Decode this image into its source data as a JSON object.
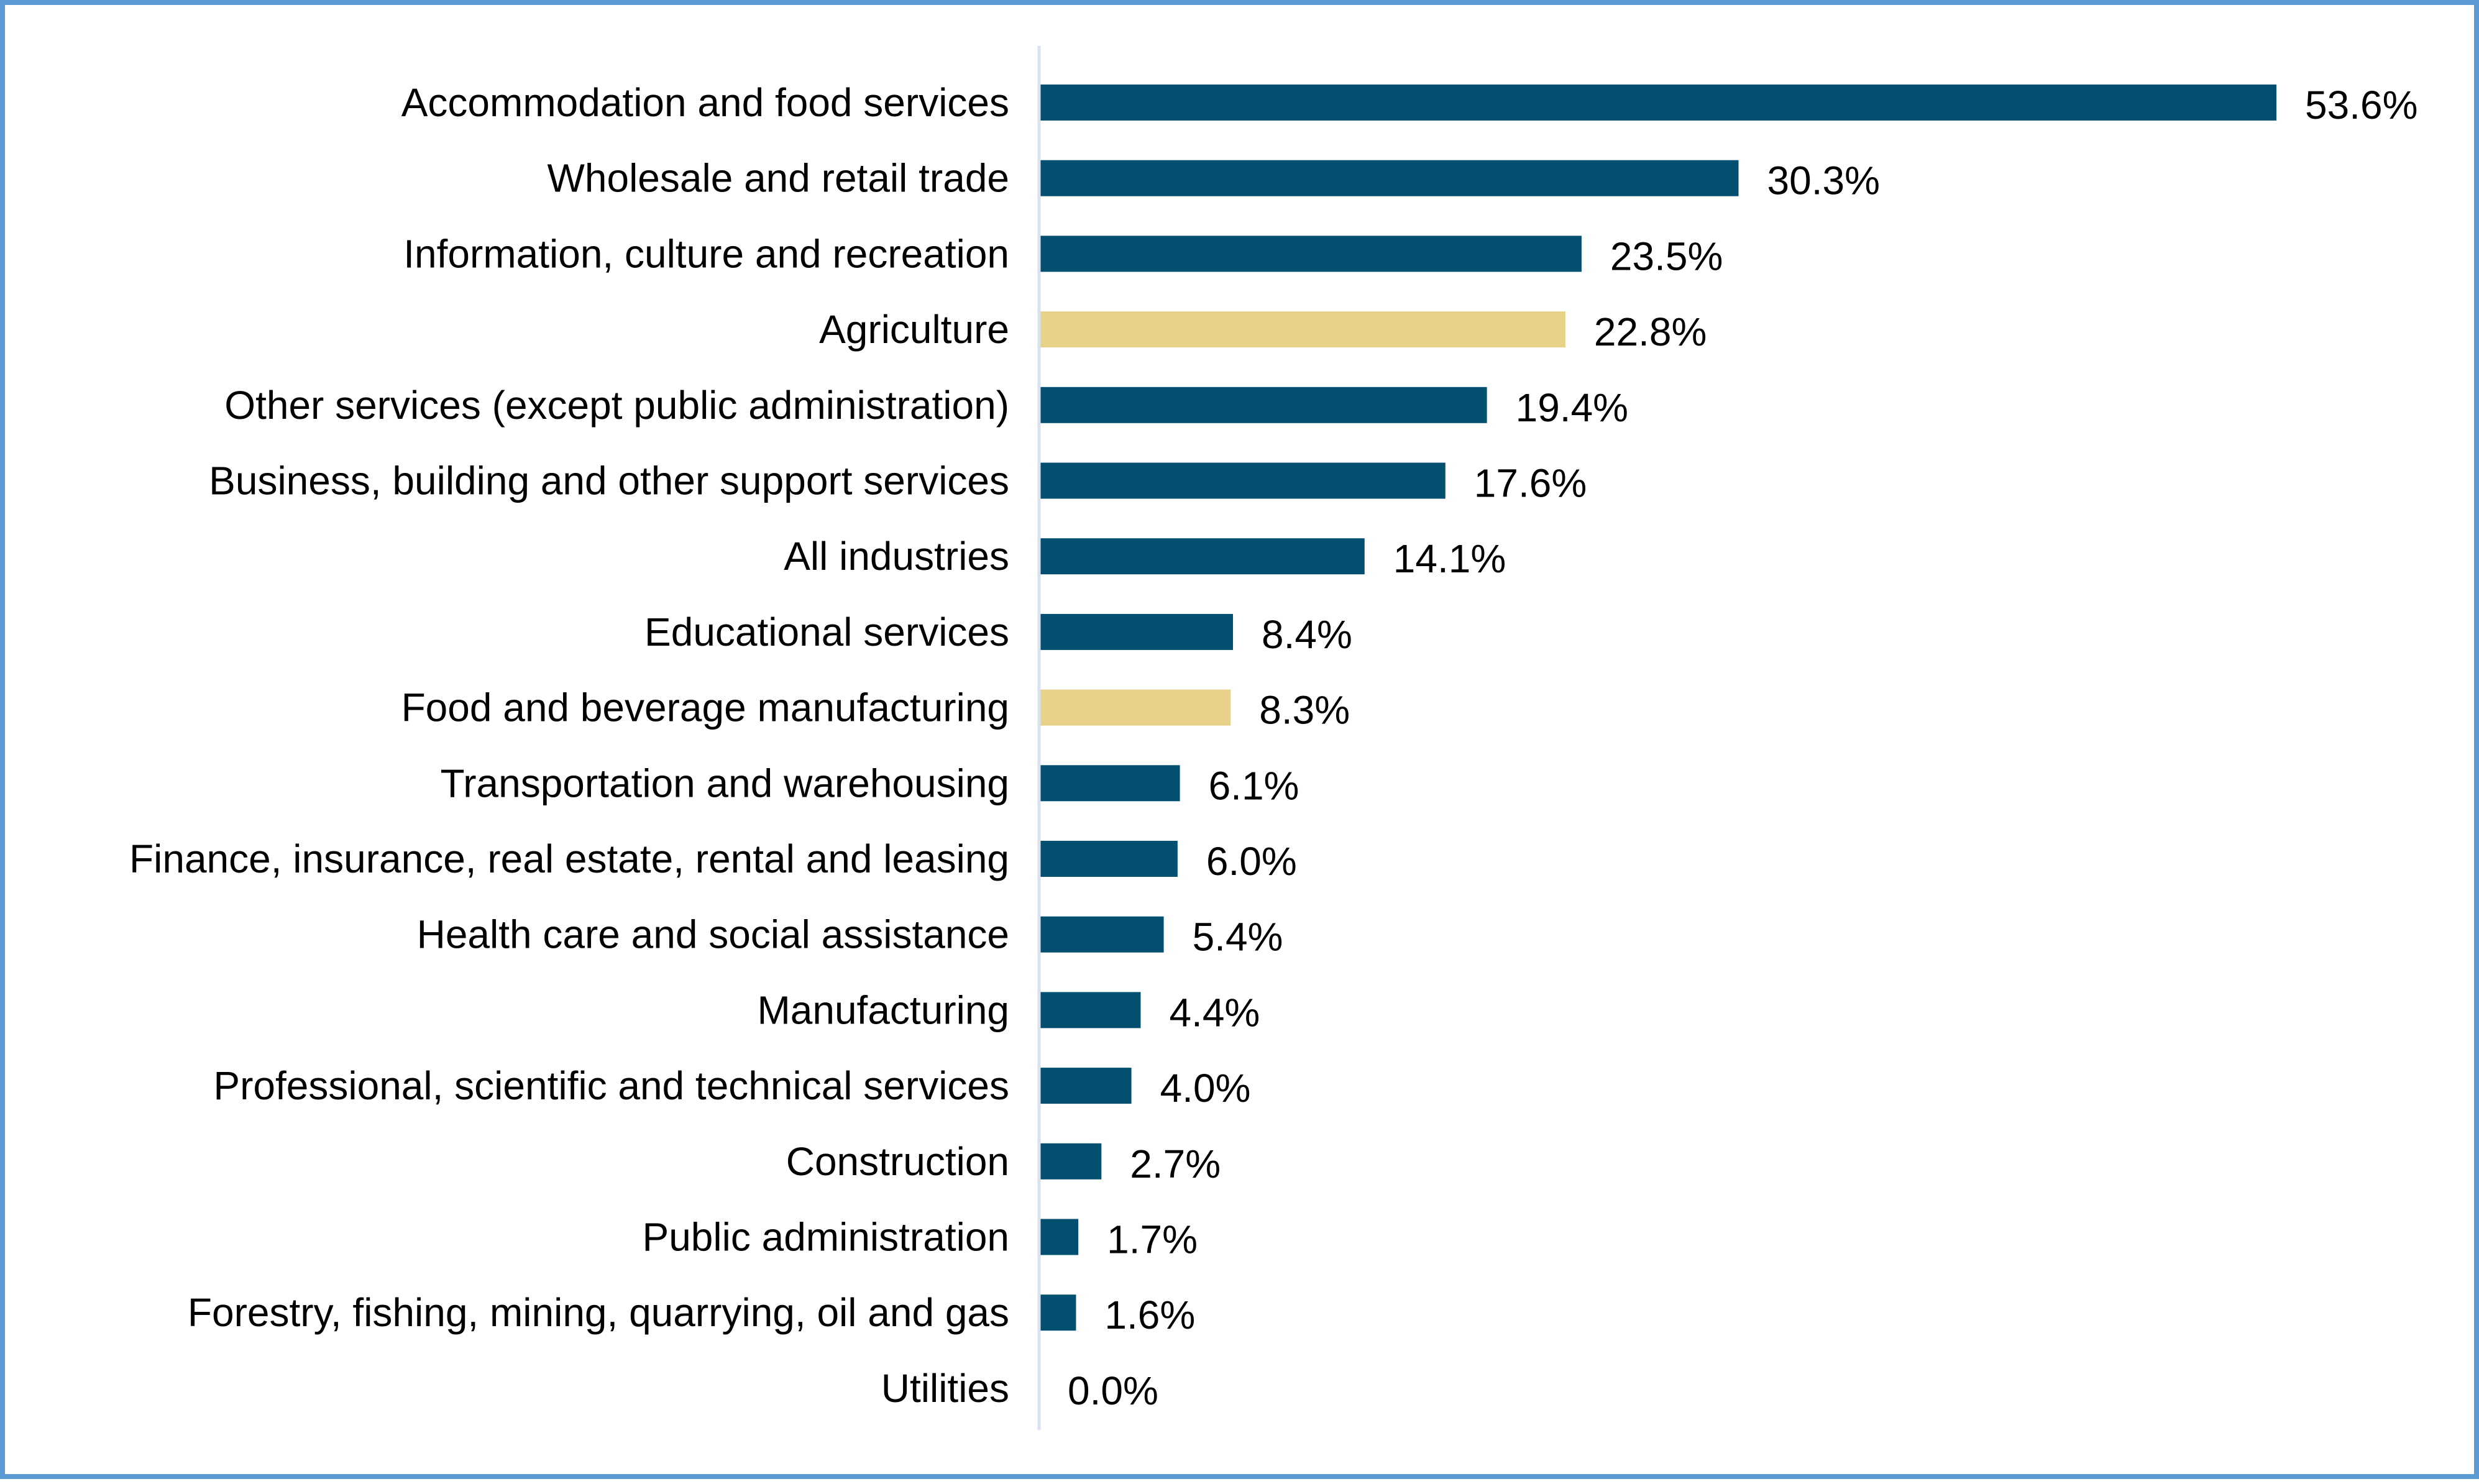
{
  "chart_data": {
    "type": "bar",
    "orientation": "horizontal",
    "title": "",
    "xlabel": "",
    "ylabel": "",
    "xlim": [
      0,
      53.6
    ],
    "grid": false,
    "legend": "none",
    "value_suffix": "%",
    "colors": {
      "default": "#034f6f",
      "highlight": "#e8d28a",
      "axis": "#d9e1ee"
    },
    "categories": [
      "Accommodation and food services",
      "Wholesale and retail trade",
      "Information, culture and recreation",
      "Agriculture",
      "Other services (except public administration)",
      "Business, building and other support services",
      "All industries",
      "Educational services",
      "Food and beverage manufacturing",
      "Transportation and warehousing",
      "Finance, insurance, real estate, rental and leasing",
      "Health care and social assistance",
      "Manufacturing",
      "Professional, scientific and technical services",
      "Construction",
      "Public administration",
      "Forestry, fishing, mining, quarrying, oil and gas",
      "Utilities"
    ],
    "values": [
      53.6,
      30.3,
      23.5,
      22.8,
      19.4,
      17.6,
      14.1,
      8.4,
      8.3,
      6.1,
      6.0,
      5.4,
      4.4,
      4.0,
      2.7,
      1.7,
      1.6,
      0.0
    ],
    "value_labels": [
      "53.6%",
      "30.3%",
      "23.5%",
      "22.8%",
      "19.4%",
      "17.6%",
      "14.1%",
      "8.4%",
      "8.3%",
      "6.1%",
      "6.0%",
      "5.4%",
      "4.4%",
      "4.0%",
      "2.7%",
      "1.7%",
      "1.6%",
      "0.0%"
    ],
    "highlighted": [
      "Agriculture",
      "Food and beverage manufacturing"
    ]
  }
}
